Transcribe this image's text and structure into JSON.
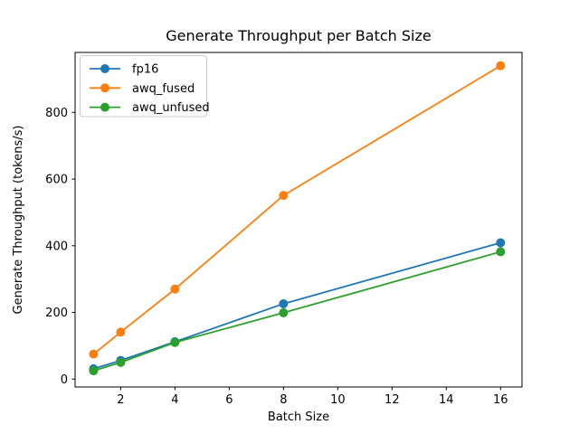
{
  "chart_data": {
    "type": "line",
    "title": "Generate Throughput per Batch Size",
    "xlabel": "Batch Size",
    "ylabel": "Generate Throughput (tokens/s)",
    "x": [
      1,
      2,
      4,
      8,
      16
    ],
    "series": [
      {
        "name": "fp16",
        "color": "#1f77b4",
        "values": [
          31,
          56,
          112,
          226,
          409
        ]
      },
      {
        "name": "awq_fused",
        "color": "#ff7f0e",
        "values": [
          75,
          141,
          270,
          551,
          940
        ]
      },
      {
        "name": "awq_unfused",
        "color": "#2ca02c",
        "values": [
          25,
          50,
          110,
          199,
          382
        ]
      }
    ],
    "xticks": [
      2,
      4,
      6,
      8,
      10,
      12,
      14,
      16
    ],
    "yticks": [
      0,
      200,
      400,
      600,
      800
    ],
    "xlim": [
      0.32,
      16.79
    ],
    "ylim": [
      -23.6,
      979.8
    ],
    "grid": false,
    "marker": "o",
    "marker_size": 5,
    "line_width": 1.8,
    "legend_position": "upper left",
    "legend_border_color": "#cccccc",
    "spine_color": "#000000",
    "background_color": "#ffffff"
  }
}
